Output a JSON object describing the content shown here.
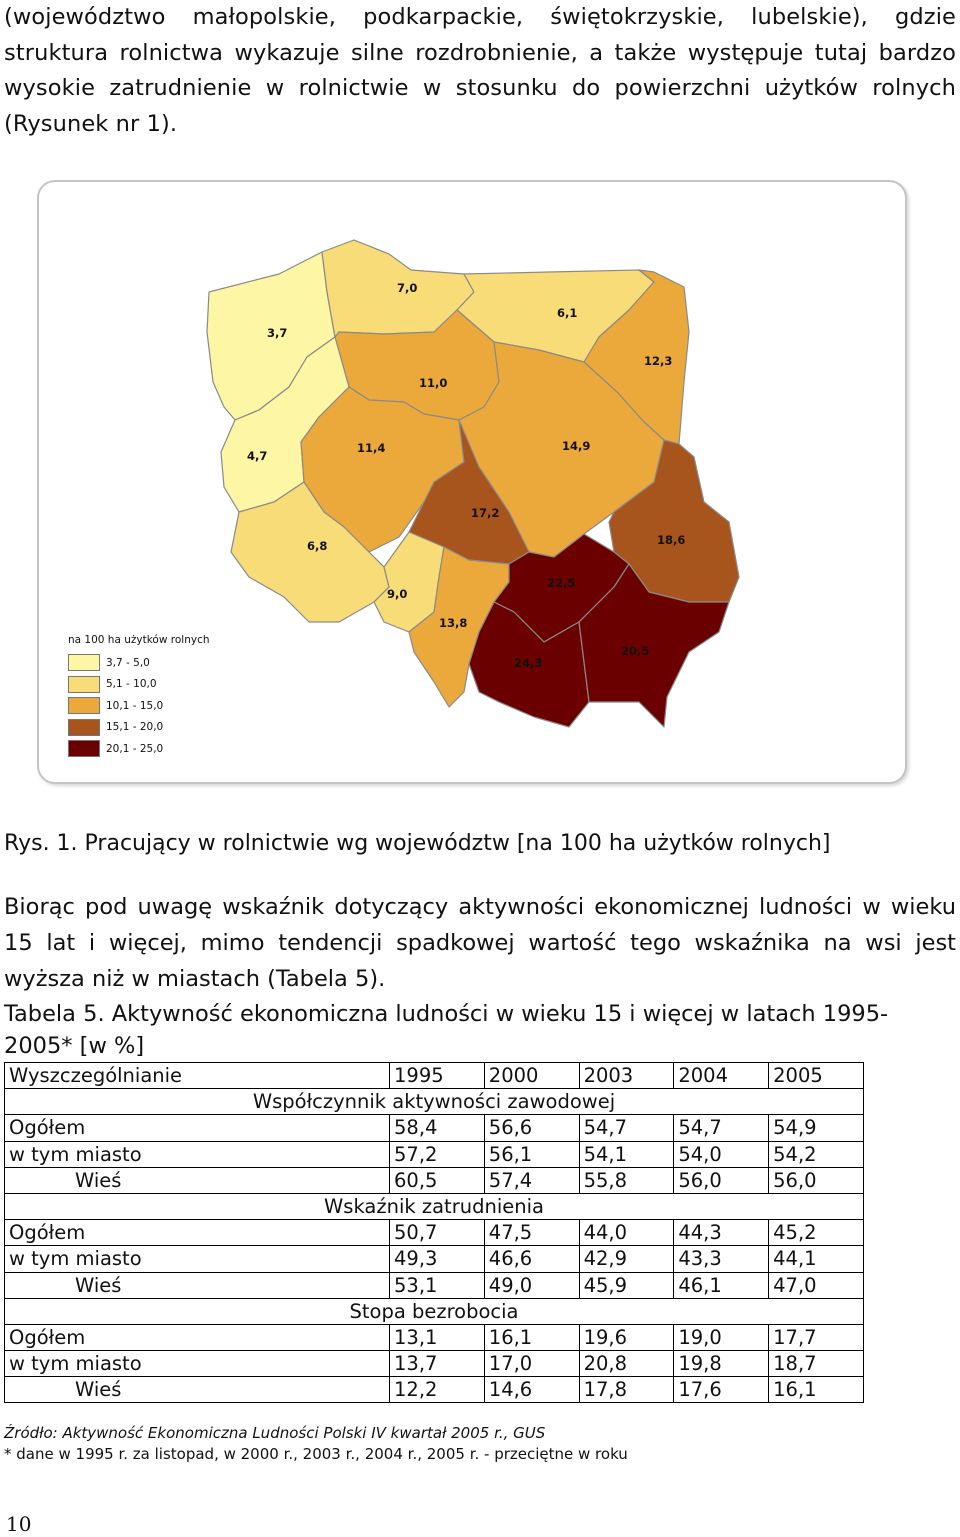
{
  "intro_text": "(województwo małopolskie, podkarpackie, świętokrzyskie, lubelskie), gdzie struktura rolnictwa wykazuje silne rozdrobnienie, a także występuje tutaj bardzo wysokie zatrudnienie w rolnictwie w stosunku do powierzchni użytków rolnych (Rysunek nr 1).",
  "map": {
    "regions": [
      {
        "id": "zachodniopomorskie",
        "value": "3,7",
        "color": "#fdf6a4"
      },
      {
        "id": "pomorskie",
        "value": "7,0",
        "color": "#f8dc78"
      },
      {
        "id": "warminsko-mazurskie",
        "value": "6,1",
        "color": "#f8dc78"
      },
      {
        "id": "podlaskie",
        "value": "12,3",
        "color": "#eba93b"
      },
      {
        "id": "kujawsko-pomorskie",
        "value": "11,0",
        "color": "#eba93b"
      },
      {
        "id": "lubuskie",
        "value": "4,7",
        "color": "#fdf6a4"
      },
      {
        "id": "wielkopolskie",
        "value": "11,4",
        "color": "#eba93b"
      },
      {
        "id": "mazowieckie",
        "value": "14,9",
        "color": "#eba93b"
      },
      {
        "id": "lodzkie",
        "value": "17,2",
        "color": "#a8541d"
      },
      {
        "id": "lubelskie",
        "value": "18,6",
        "color": "#a8541d"
      },
      {
        "id": "dolnoslaskie",
        "value": "6,8",
        "color": "#f8dc78"
      },
      {
        "id": "opolskie",
        "value": "9,0",
        "color": "#f8dc78"
      },
      {
        "id": "slaskie",
        "value": "13,8",
        "color": "#eba93b"
      },
      {
        "id": "swietokrzyskie",
        "value": "22,5",
        "color": "#6b0000"
      },
      {
        "id": "malopolskie",
        "value": "24,3",
        "color": "#6b0000"
      },
      {
        "id": "podkarpackie",
        "value": "20,5",
        "color": "#6b0000"
      }
    ],
    "legend": {
      "title": "na 100 ha użytków rolnych",
      "items": [
        {
          "label": "3,7 - 5,0",
          "color": "#fdf6a4"
        },
        {
          "label": "5,1 - 10,0",
          "color": "#f8dc78"
        },
        {
          "label": "10,1 - 15,0",
          "color": "#eba93b"
        },
        {
          "label": "15,1 - 20,0",
          "color": "#a8541d"
        },
        {
          "label": "20,1 - 25,0",
          "color": "#6b0000"
        }
      ]
    }
  },
  "caption": "Rys. 1. Pracujący w rolnictwie wg województw [na 100 ha użytków rolnych]",
  "paragraph2": "Biorąc pod uwagę wskaźnik dotyczący aktywności ekonomicznej ludności w wieku 15 lat i więcej, mimo tendencji spadkowej wartość tego wskaźnika na wsi jest wyższa niż w miastach (Tabela 5).",
  "table_title": "Tabela 5. Aktywność ekonomiczna ludności w wieku 15 i więcej w latach 1995-2005* [w %]",
  "table": {
    "header": [
      "Wyszczególnianie",
      "1995",
      "2000",
      "2003",
      "2004",
      "2005"
    ],
    "sections": [
      {
        "title": "Współczynnik aktywności zawodowej",
        "rows": [
          {
            "label": "Ogółem",
            "values": [
              "58,4",
              "56,6",
              "54,7",
              "54,7",
              "54,9"
            ]
          },
          {
            "label": "w tym miasto",
            "values": [
              "57,2",
              "56,1",
              "54,1",
              "54,0",
              "54,2"
            ]
          },
          {
            "label": "Wieś",
            "values": [
              "60,5",
              "57,4",
              "55,8",
              "56,0",
              "56,0"
            ]
          }
        ]
      },
      {
        "title": "Wskaźnik zatrudnienia",
        "rows": [
          {
            "label": "Ogółem",
            "values": [
              "50,7",
              "47,5",
              "44,0",
              "44,3",
              "45,2"
            ]
          },
          {
            "label": "w tym miasto",
            "values": [
              "49,3",
              "46,6",
              "42,9",
              "43,3",
              "44,1"
            ]
          },
          {
            "label": "Wieś",
            "values": [
              "53,1",
              "49,0",
              "45,9",
              "46,1",
              "47,0"
            ]
          }
        ]
      },
      {
        "title": "Stopa bezrobocia",
        "rows": [
          {
            "label": "Ogółem",
            "values": [
              "13,1",
              "16,1",
              "19,6",
              "19,0",
              "17,7"
            ]
          },
          {
            "label": "w tym miasto",
            "values": [
              "13,7",
              "17,0",
              "20,8",
              "19,8",
              "18,7"
            ]
          },
          {
            "label": "Wieś",
            "values": [
              "12,2",
              "14,6",
              "17,8",
              "17,6",
              "16,1"
            ]
          }
        ]
      }
    ]
  },
  "source": "Źródło: Aktywność Ekonomiczna Ludności Polski IV kwartał 2005 r., GUS",
  "note": "* dane w 1995 r. za listopad, w 2000 r., 2003 r., 2004 r., 2005 r. - przeciętne w roku",
  "page_number": "10"
}
